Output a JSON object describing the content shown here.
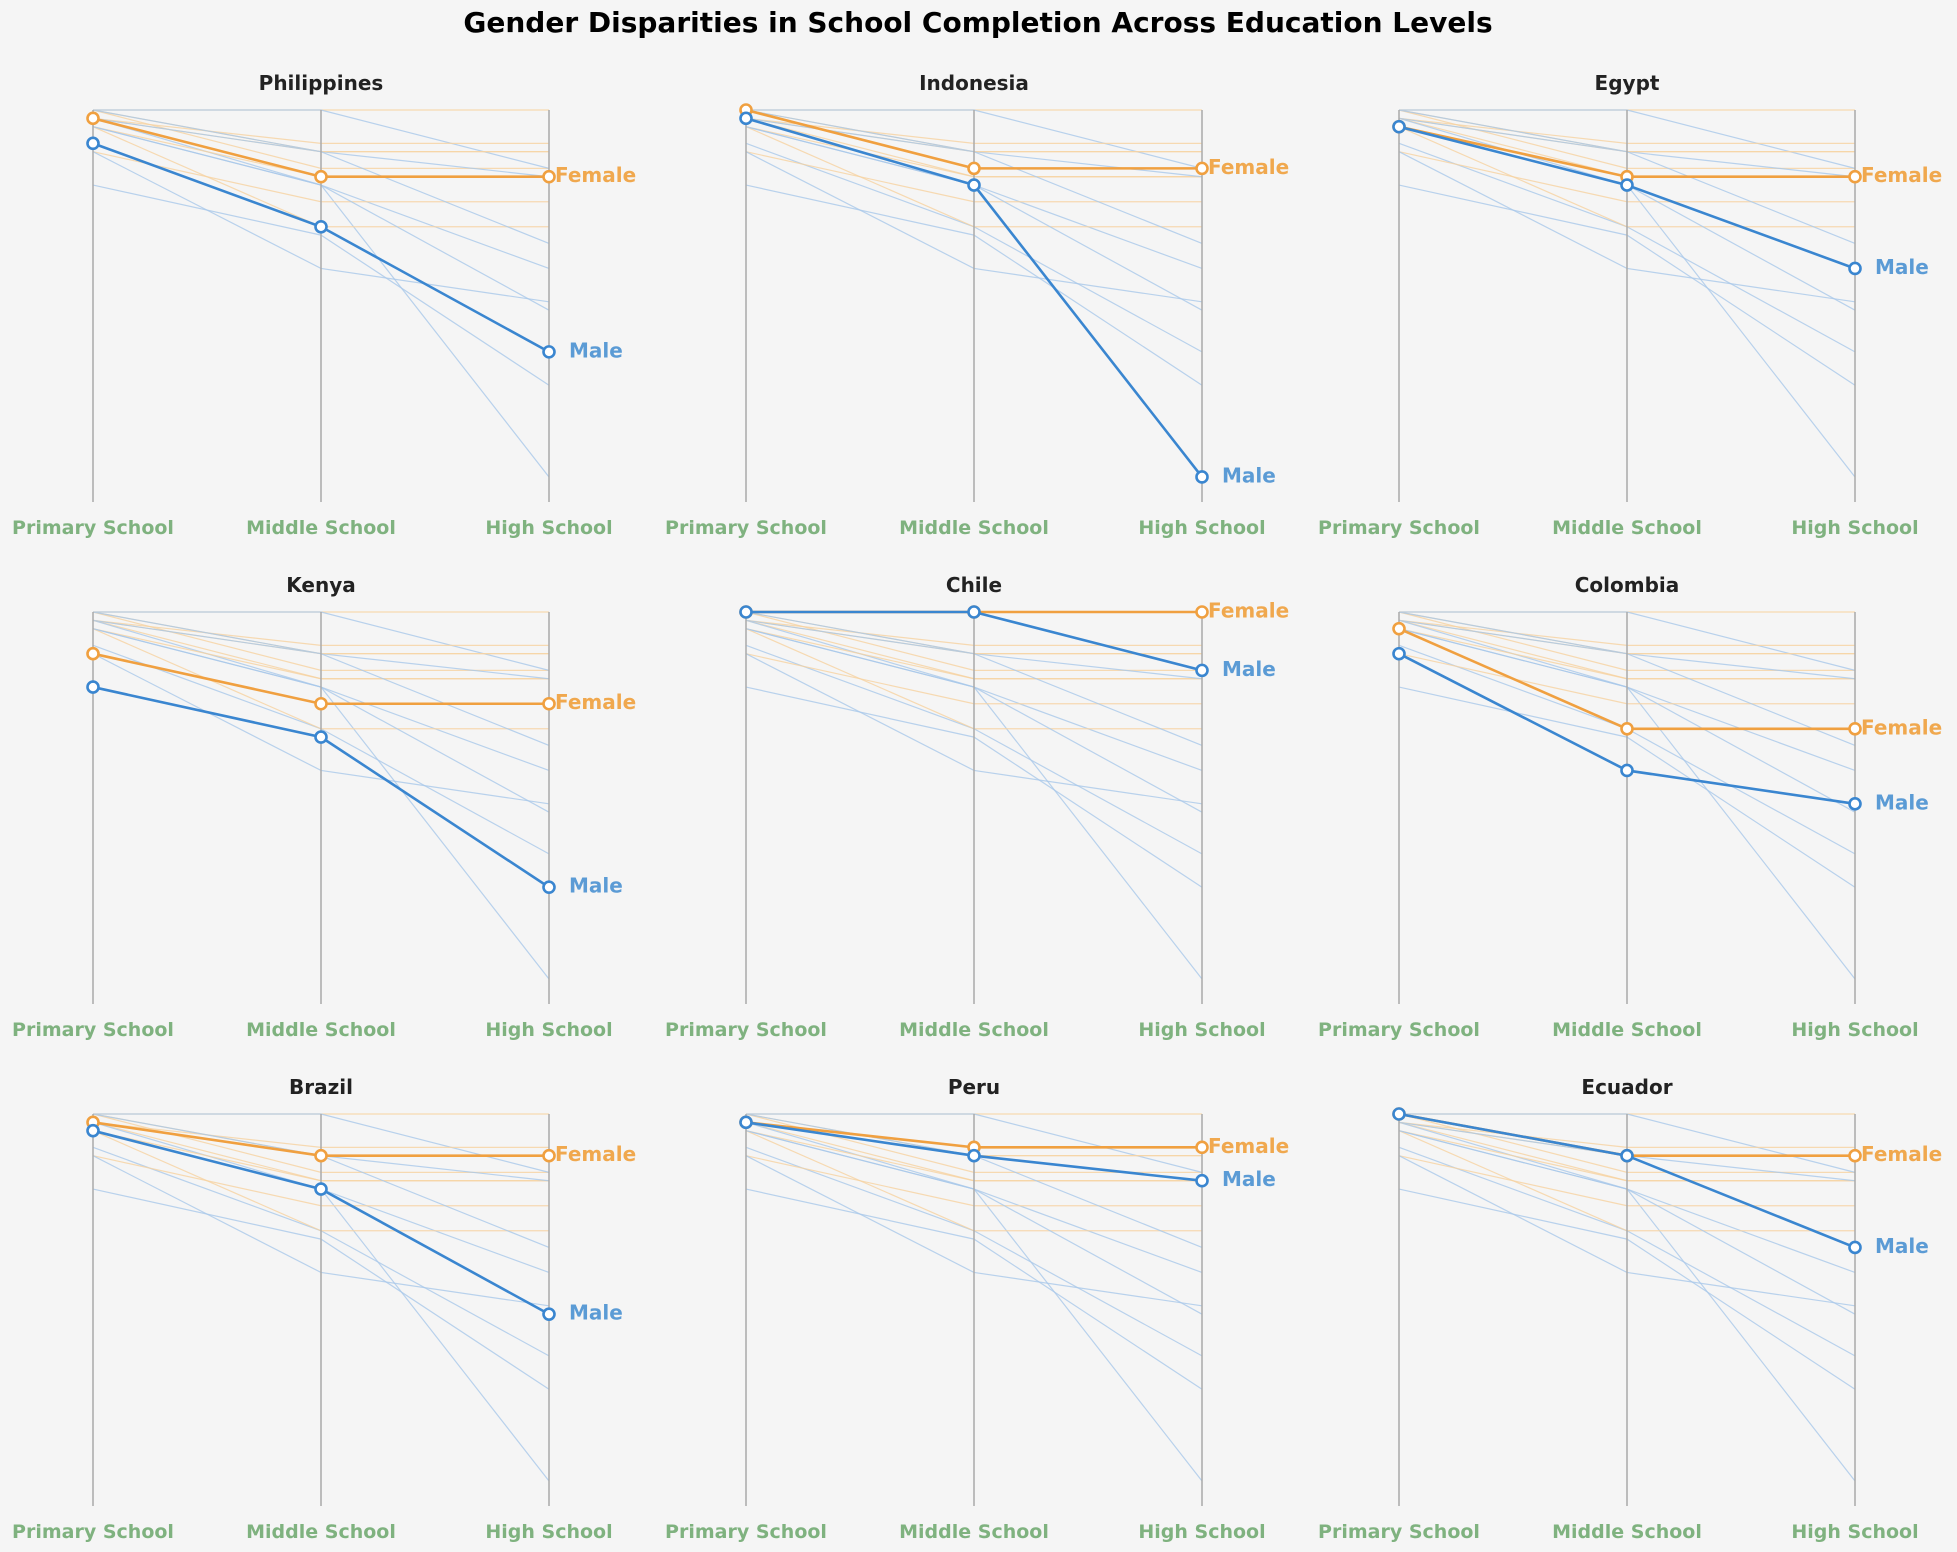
{
  "title": "Gender Disparities in School Completion Across Education Levels",
  "colors": {
    "background": "#f5f5f5",
    "male": "#3a86d0",
    "female": "#f0a040",
    "male_label": "#5b9bd5",
    "female_label": "#f0a84e",
    "axis_label": "#7fb27f",
    "axis_line": "#aaaaaa",
    "context_male": "#a9c8ea",
    "context_female": "#f6d2a0"
  },
  "series_labels": {
    "male": "Male",
    "female": "Female"
  },
  "chart_data": {
    "type": "line",
    "levels": [
      "Primary School",
      "Middle School",
      "High School"
    ],
    "ylim": [
      0.33,
      0.8
    ],
    "grid": false,
    "legend": "inline labels at line ends",
    "series": [
      {
        "country": "Philippines",
        "male": [
          0.76,
          0.66,
          0.51
        ],
        "female": [
          0.79,
          0.72,
          0.72
        ]
      },
      {
        "country": "Indonesia",
        "male": [
          0.79,
          0.71,
          0.36
        ],
        "female": [
          0.8,
          0.73,
          0.73
        ]
      },
      {
        "country": "Egypt",
        "male": [
          0.78,
          0.71,
          0.61
        ],
        "female": [
          0.78,
          0.72,
          0.72
        ]
      },
      {
        "country": "Kenya",
        "male": [
          0.71,
          0.65,
          0.47
        ],
        "female": [
          0.75,
          0.69,
          0.69
        ]
      },
      {
        "country": "Chile",
        "male": [
          0.8,
          0.8,
          0.73
        ],
        "female": [
          0.8,
          0.8,
          0.8
        ]
      },
      {
        "country": "Colombia",
        "male": [
          0.75,
          0.61,
          0.57
        ],
        "female": [
          0.78,
          0.66,
          0.66
        ]
      },
      {
        "country": "Brazil",
        "male": [
          0.78,
          0.71,
          0.56
        ],
        "female": [
          0.79,
          0.75,
          0.75
        ]
      },
      {
        "country": "Peru",
        "male": [
          0.79,
          0.75,
          0.72
        ],
        "female": [
          0.79,
          0.76,
          0.76
        ]
      },
      {
        "country": "Ecuador",
        "male": [
          0.8,
          0.75,
          0.64
        ],
        "female": [
          0.8,
          0.75,
          0.75
        ]
      }
    ]
  }
}
